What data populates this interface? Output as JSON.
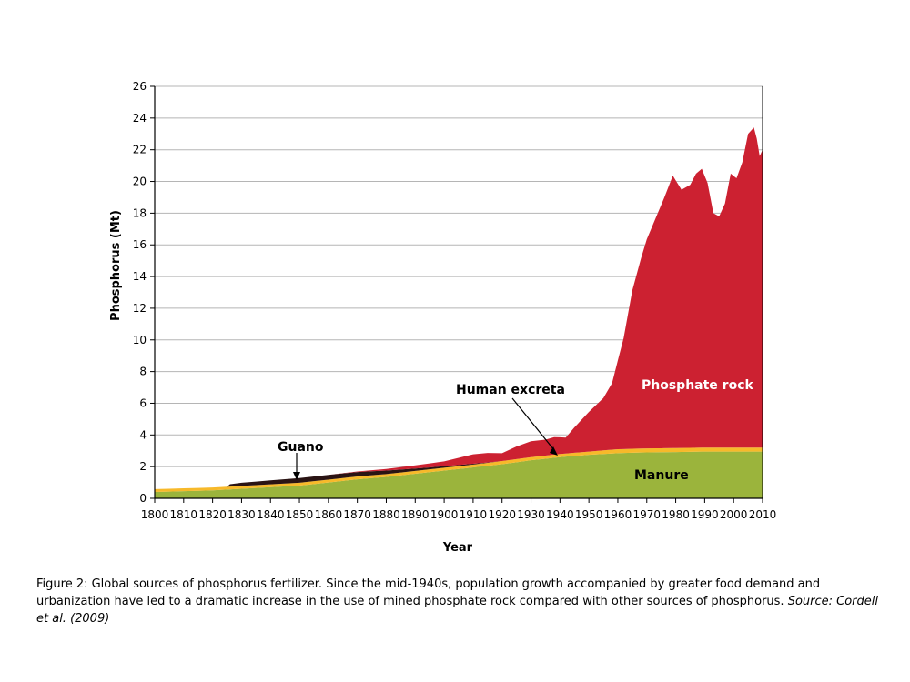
{
  "chart_data": {
    "type": "area",
    "stacked": true,
    "xlabel": "Year",
    "ylabel": "Phosphorus (Mt)",
    "xlim": [
      1800,
      2010
    ],
    "ylim": [
      0,
      26
    ],
    "x_ticks": [
      1800,
      1810,
      1820,
      1830,
      1840,
      1850,
      1860,
      1870,
      1880,
      1890,
      1900,
      1910,
      1920,
      1930,
      1940,
      1950,
      1960,
      1970,
      1980,
      1990,
      2000,
      2010
    ],
    "y_ticks": [
      0,
      2,
      4,
      6,
      8,
      10,
      12,
      14,
      16,
      18,
      20,
      22,
      24,
      26
    ],
    "grid": true,
    "series": [
      {
        "name": "Manure",
        "color": "#9bb43c",
        "x": [
          1800,
          1810,
          1820,
          1830,
          1840,
          1850,
          1860,
          1870,
          1880,
          1890,
          1900,
          1910,
          1920,
          1930,
          1940,
          1950,
          1960,
          1970,
          1980,
          1990,
          2000,
          2010
        ],
        "values": [
          0.4,
          0.45,
          0.5,
          0.6,
          0.7,
          0.8,
          1.0,
          1.2,
          1.35,
          1.55,
          1.75,
          1.95,
          2.15,
          2.4,
          2.6,
          2.75,
          2.85,
          2.9,
          2.92,
          2.95,
          2.95,
          2.95
        ]
      },
      {
        "name": "Human excreta",
        "color": "#f7b92a",
        "x": [
          1800,
          1810,
          1820,
          1830,
          1840,
          1850,
          1860,
          1870,
          1880,
          1890,
          1900,
          1910,
          1920,
          1930,
          1940,
          1950,
          1960,
          1970,
          1980,
          1990,
          2000,
          2010
        ],
        "values": [
          0.18,
          0.18,
          0.18,
          0.18,
          0.18,
          0.18,
          0.18,
          0.18,
          0.18,
          0.18,
          0.18,
          0.18,
          0.2,
          0.2,
          0.2,
          0.2,
          0.25,
          0.25,
          0.25,
          0.25,
          0.25,
          0.25
        ]
      },
      {
        "name": "Guano",
        "color": "#2a1414",
        "x": [
          1800,
          1825,
          1826,
          1830,
          1840,
          1850,
          1860,
          1870,
          1880,
          1890,
          1900,
          1910,
          1915,
          1920
        ],
        "values": [
          0,
          0,
          0.15,
          0.2,
          0.25,
          0.3,
          0.3,
          0.28,
          0.22,
          0.15,
          0.1,
          0.05,
          0.02,
          0
        ]
      },
      {
        "name": "Phosphate rock",
        "color": "#cc2131",
        "x": [
          1800,
          1840,
          1850,
          1860,
          1870,
          1880,
          1890,
          1900,
          1905,
          1910,
          1915,
          1920,
          1925,
          1930,
          1935,
          1938,
          1942,
          1945,
          1950,
          1955,
          1958,
          1962,
          1965,
          1968,
          1970,
          1973,
          1976,
          1979,
          1982,
          1985,
          1987,
          1989,
          1991,
          1993,
          1995,
          1997,
          1999,
          2001,
          2003,
          2005,
          2006,
          2007,
          2008,
          2009,
          2010
        ],
        "values": [
          0,
          0,
          0,
          0,
          0.03,
          0.1,
          0.2,
          0.3,
          0.45,
          0.6,
          0.6,
          0.5,
          0.8,
          1.0,
          1.0,
          1.1,
          1.0,
          1.6,
          2.5,
          3.3,
          4.2,
          7.0,
          10.0,
          12.0,
          13.2,
          14.5,
          15.8,
          17.2,
          16.3,
          16.6,
          17.3,
          17.6,
          16.7,
          14.8,
          14.6,
          15.4,
          17.3,
          17.0,
          18.0,
          19.8,
          20.0,
          20.2,
          19.5,
          18.4,
          18.8
        ]
      }
    ],
    "annotations": [
      "Guano",
      "Human excreta",
      "Phosphate rock",
      "Manure"
    ]
  },
  "caption": {
    "text": "Figure 2: Global sources of phosphorus fertilizer. Since the mid-1940s, population growth accompanied by greater food demand and urbanization have led to a dramatic increase in the use of mined phosphate rock compared with other sources of phosphorus. ",
    "source": "Source: Cordell et al. (2009)"
  }
}
